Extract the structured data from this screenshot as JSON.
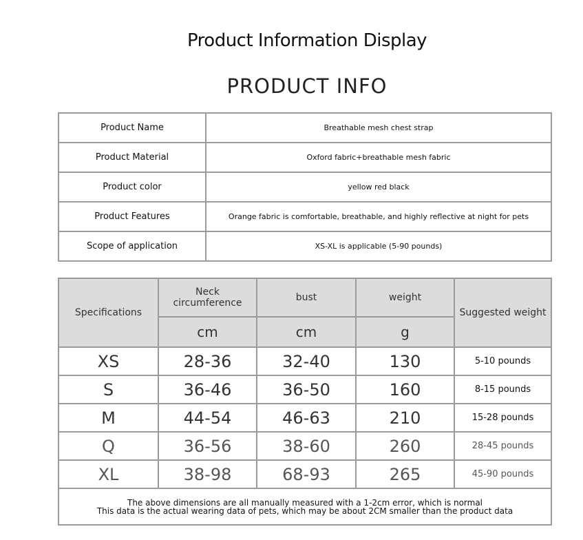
{
  "title": "Product Information Display",
  "subtitle": "PRODUCT INFO",
  "info": [
    {
      "label": "Product Name",
      "value": "Breathable mesh chest strap"
    },
    {
      "label": "Product Material",
      "value": "Oxford fabric+breathable mesh fabric"
    },
    {
      "label": "Product color",
      "value": "yellow     red     black"
    },
    {
      "label": "Product Features",
      "value": "Orange fabric is comfortable, breathable, and highly reflective at night for pets"
    },
    {
      "label": "Scope of application",
      "value": "XS-XL is applicable     (5-90 pounds)"
    }
  ],
  "size_table": {
    "headers": {
      "spec": "Specifications",
      "neck": "Neck circumference",
      "bust": "bust",
      "weight": "weight",
      "suggested": "Suggested weight"
    },
    "units": {
      "neck": "cm",
      "bust": "cm",
      "weight": "g"
    },
    "rows": [
      {
        "size": "XS",
        "neck": "28-36",
        "bust": "32-40",
        "weight": "130",
        "suggested": "5-10 pounds"
      },
      {
        "size": "S",
        "neck": "36-46",
        "bust": "36-50",
        "weight": "160",
        "suggested": "8-15 pounds"
      },
      {
        "size": "M",
        "neck": "44-54",
        "bust": "46-63",
        "weight": "210",
        "suggested": "15-28 pounds"
      },
      {
        "size": "Q",
        "neck": "36-56",
        "bust": "38-60",
        "weight": "260",
        "suggested": "28-45 pounds"
      },
      {
        "size": "XL",
        "neck": "38-98",
        "bust": "68-93",
        "weight": "265",
        "suggested": "45-90 pounds"
      }
    ],
    "note": [
      "The above dimensions are all manually measured with a 1-2cm error, which is normal",
      "This data is the actual wearing data of pets, which may be about 2CM smaller than the product data"
    ]
  }
}
